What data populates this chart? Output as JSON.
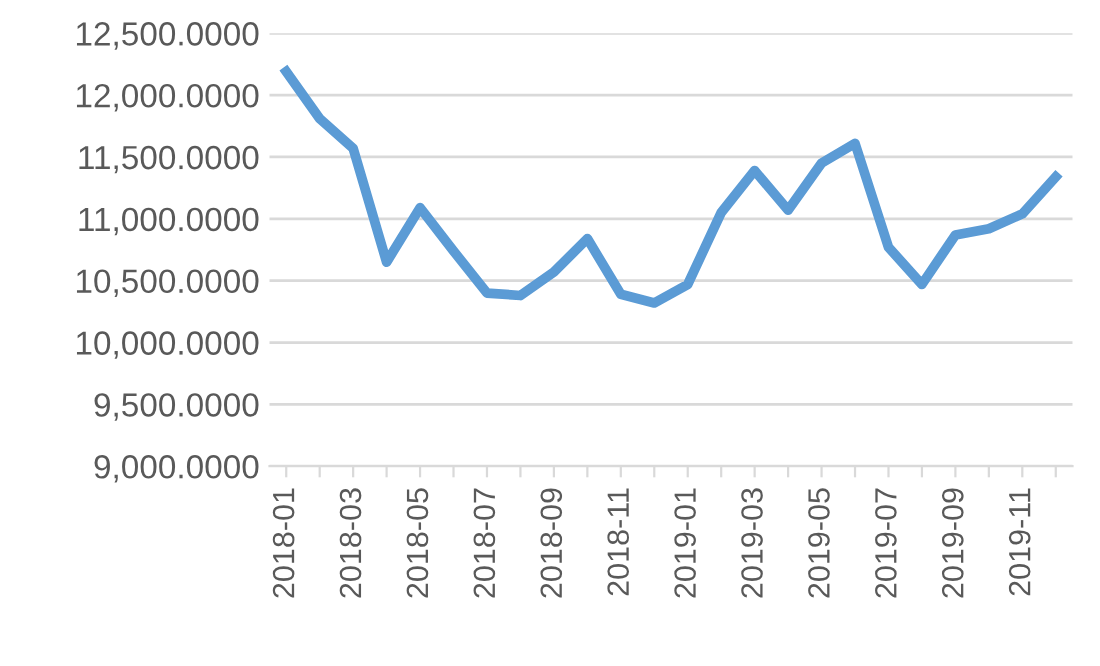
{
  "chart_data": {
    "type": "line",
    "categories": [
      "2018-01",
      null,
      "2018-03",
      null,
      "2018-05",
      null,
      "2018-07",
      null,
      "2018-09",
      null,
      "2018-11",
      null,
      "2019-01",
      null,
      "2019-03",
      null,
      "2019-05",
      null,
      "2019-07",
      null,
      "2019-09",
      null,
      "2019-11",
      null
    ],
    "series": [
      {
        "color": "#5b9bd5",
        "values": [
          12190,
          11810,
          11570,
          10650,
          11090,
          10740,
          10400,
          10380,
          10570,
          10840,
          10390,
          10320,
          10470,
          11050,
          11390,
          11070,
          11450,
          11610,
          10770,
          10470,
          10870,
          10920,
          11040,
          11340
        ]
      }
    ],
    "ylim": [
      9000,
      12500
    ],
    "yticks": [
      {
        "value": 9000,
        "label": "9,000.0000"
      },
      {
        "value": 9500,
        "label": "9,500.0000"
      },
      {
        "value": 10000,
        "label": "10,000.0000"
      },
      {
        "value": 10500,
        "label": "10,500.0000"
      },
      {
        "value": 11000,
        "label": "11,000.0000"
      },
      {
        "value": 11500,
        "label": "11,500.0000"
      },
      {
        "value": 12000,
        "label": "12,000.0000"
      },
      {
        "value": 12500,
        "label": "12,500.0000"
      }
    ],
    "grid": "y",
    "legend": false,
    "marker": "none",
    "line_style": "solid"
  }
}
